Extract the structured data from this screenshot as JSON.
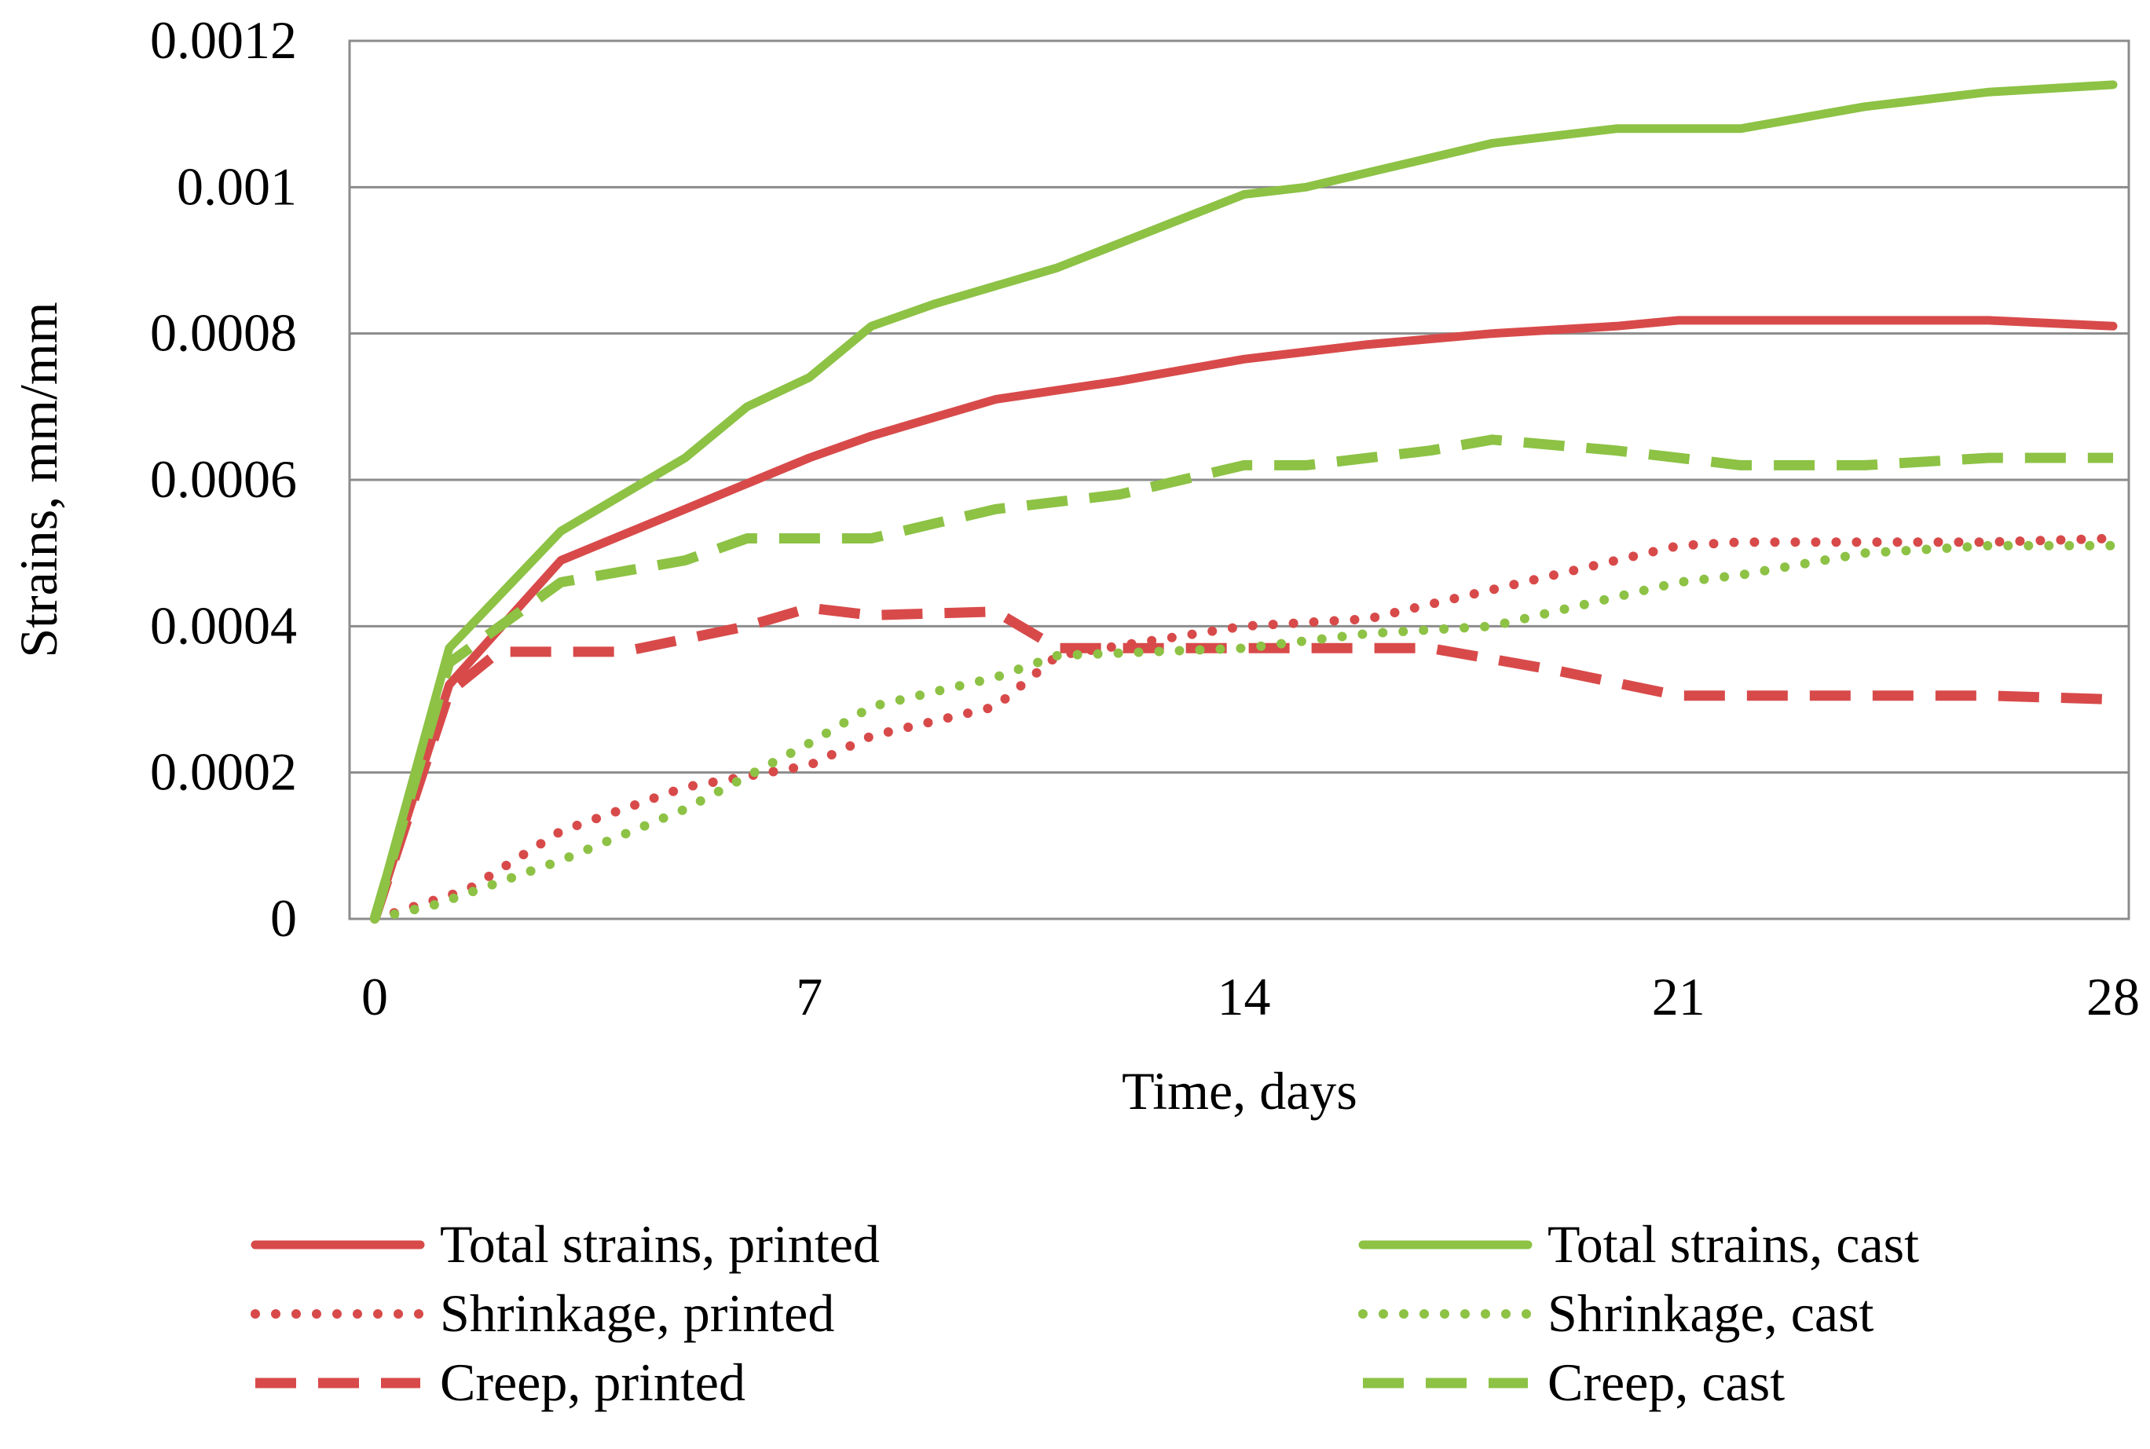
{
  "chart_data": {
    "type": "line",
    "title": "",
    "xlabel": "Time, days",
    "ylabel": "Strains, mm/mm",
    "xlim": [
      0,
      28
    ],
    "ylim": [
      0,
      0.0012
    ],
    "xticks": [
      0,
      7,
      14,
      21,
      28
    ],
    "xtick_labels": [
      "0",
      "7",
      "14",
      "21",
      "28"
    ],
    "yticks": [
      0,
      0.0002,
      0.0004,
      0.0006,
      0.0008,
      0.001,
      0.0012
    ],
    "ytick_labels": [
      "0",
      "0.0002",
      "0.0004",
      "0.0006",
      "0.0008",
      "0.001",
      "0.0012"
    ],
    "grid": "horizontal",
    "legend_position": "bottom",
    "series": [
      {
        "name": "Total strains, printed",
        "color": "#d84a4a",
        "style": "solid",
        "x": [
          0,
          1.2,
          3,
          5,
          7,
          8,
          10,
          12,
          14,
          16,
          18,
          20,
          21,
          22,
          24,
          26,
          28
        ],
        "values": [
          0,
          0.00032,
          0.00049,
          0.00056,
          0.00063,
          0.00066,
          0.00071,
          0.000735,
          0.000765,
          0.000785,
          0.0008,
          0.00081,
          0.000818,
          0.000818,
          0.000818,
          0.000818,
          0.00081
        ]
      },
      {
        "name": "Shrinkage, printed",
        "color": "#d84a4a",
        "style": "dotted",
        "x": [
          0,
          1.5,
          3,
          5,
          7,
          8,
          10,
          11,
          14,
          16,
          18,
          20,
          21,
          22,
          24,
          26,
          28
        ],
        "values": [
          0,
          4e-05,
          0.00012,
          0.00018,
          0.00021,
          0.00025,
          0.00029,
          0.00036,
          0.0004,
          0.00041,
          0.00045,
          0.00049,
          0.00051,
          0.000515,
          0.000515,
          0.000515,
          0.00052
        ]
      },
      {
        "name": "Creep, printed",
        "color": "#d84a4a",
        "style": "dashed",
        "x": [
          0,
          1.2,
          2,
          4,
          6,
          7,
          8,
          10,
          11,
          14,
          17,
          19,
          21,
          22,
          24,
          26,
          28
        ],
        "values": [
          0,
          0.00031,
          0.000365,
          0.000365,
          0.0004,
          0.000425,
          0.000415,
          0.00042,
          0.00037,
          0.00037,
          0.00037,
          0.00034,
          0.000305,
          0.000305,
          0.000305,
          0.000305,
          0.0003
        ]
      },
      {
        "name": "Total strains, cast",
        "color": "#8dc245",
        "style": "solid",
        "x": [
          0,
          1.2,
          3,
          5,
          6,
          7,
          8,
          9,
          11,
          14,
          15,
          17,
          18,
          20,
          21,
          22,
          24,
          26,
          28
        ],
        "values": [
          0,
          0.00037,
          0.00053,
          0.00063,
          0.0007,
          0.00074,
          0.00081,
          0.00084,
          0.00089,
          0.00099,
          0.001,
          0.00104,
          0.00106,
          0.00108,
          0.00108,
          0.00108,
          0.00111,
          0.00113,
          0.00114
        ]
      },
      {
        "name": "Shrinkage, cast",
        "color": "#8dc245",
        "style": "dotted",
        "x": [
          0,
          1,
          3,
          5,
          7,
          8,
          10,
          11,
          14,
          16,
          18,
          20,
          21,
          22,
          24,
          26,
          28
        ],
        "values": [
          0,
          2e-05,
          8e-05,
          0.00015,
          0.00024,
          0.00029,
          0.00033,
          0.00036,
          0.00037,
          0.00039,
          0.0004,
          0.00044,
          0.00046,
          0.00047,
          0.0005,
          0.00051,
          0.00051
        ]
      },
      {
        "name": "Creep, cast",
        "color": "#8dc245",
        "style": "dashed",
        "x": [
          0,
          1.2,
          3,
          5,
          6,
          7,
          8,
          10,
          12,
          14,
          15,
          17,
          18,
          20,
          21,
          22,
          24,
          26,
          28
        ],
        "values": [
          0,
          0.00035,
          0.00046,
          0.00049,
          0.00052,
          0.00052,
          0.00052,
          0.00056,
          0.00058,
          0.00062,
          0.00062,
          0.00064,
          0.000655,
          0.00064,
          0.00063,
          0.00062,
          0.00062,
          0.00063,
          0.00063
        ]
      }
    ]
  }
}
